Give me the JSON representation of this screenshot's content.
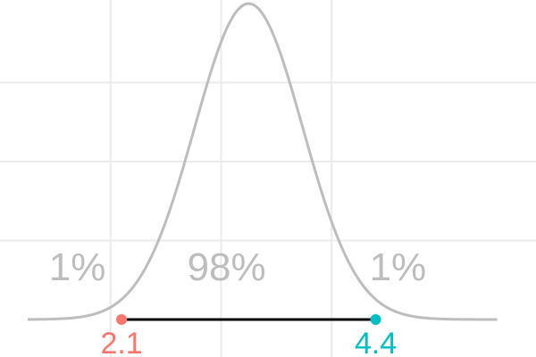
{
  "colors": {
    "background": "#ffffff",
    "grid": "#ebebeb",
    "density_curve": "#bdbdbd",
    "region_text": "#bdbdbd",
    "interval_line": "#000000",
    "lower_bound": "#f8766d",
    "upper_bound": "#00bfc4"
  },
  "chart_data": {
    "type": "area",
    "description_type": "density-curve-with-interval",
    "distribution": {
      "family": "normal",
      "mean": 3.25,
      "sd": 0.49
    },
    "xlim": [
      1.0,
      5.85
    ],
    "ylim": [
      0,
      1.0
    ],
    "grid": true,
    "x_gridlines": [
      2.0,
      3.0,
      4.0
    ],
    "y_gridlines": [
      0.25,
      0.5,
      0.75
    ],
    "interval": {
      "lower": 2.1,
      "upper": 4.4
    },
    "bound_labels": {
      "lower": "2.1",
      "upper": "4.4"
    },
    "regions": [
      {
        "label": "1%",
        "x": 1.7
      },
      {
        "label": "98%",
        "x": 3.05
      },
      {
        "label": "1%",
        "x": 4.6
      }
    ]
  }
}
